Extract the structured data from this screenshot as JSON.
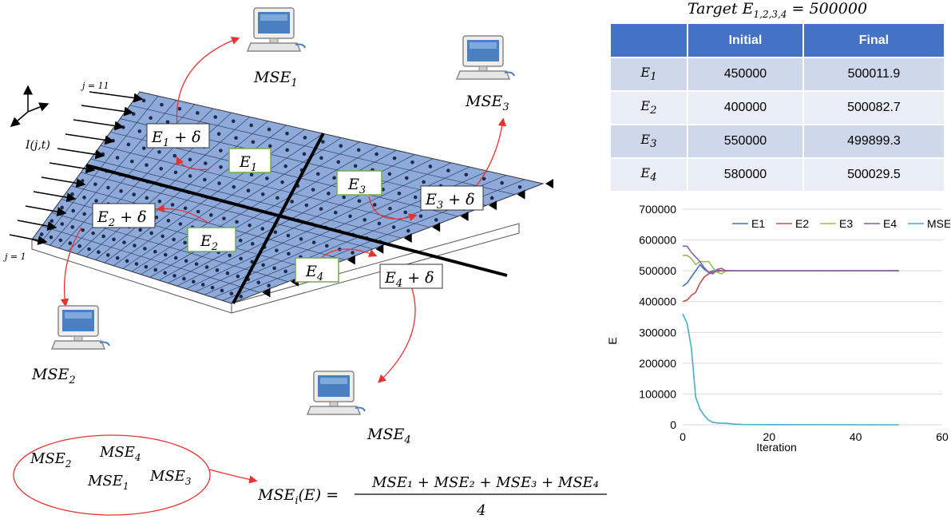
{
  "diagram": {
    "labels": {
      "j_top": "j = 11",
      "j_bottom": "j = 1",
      "load": "I(j,t)",
      "e1_delta": "E",
      "e1_delta_sub": "1",
      "e1_delta_tail": " + δ",
      "e2_delta": "E",
      "e2_delta_sub": "2",
      "e2_delta_tail": " + δ",
      "e3_delta": "E",
      "e3_delta_sub": "3",
      "e3_delta_tail": " + δ",
      "e4_delta": "E",
      "e4_delta_sub": "4",
      "e4_delta_tail": " + δ",
      "e1": "E",
      "e1_sub": "1",
      "e2": "E",
      "e2_sub": "2",
      "e3": "E",
      "e3_sub": "3",
      "e4": "E",
      "e4_sub": "4"
    },
    "computers": [
      {
        "label": "MSE",
        "sub": "1"
      },
      {
        "label": "MSE",
        "sub": "2"
      },
      {
        "label": "MSE",
        "sub": "3"
      },
      {
        "label": "MSE",
        "sub": "4"
      }
    ],
    "ellipse_items": [
      {
        "label": "MSE",
        "sub": "2"
      },
      {
        "label": "MSE",
        "sub": "4"
      },
      {
        "label": "MSE",
        "sub": "1"
      },
      {
        "label": "MSE",
        "sub": "3"
      }
    ],
    "formula": {
      "lhs": "MSE",
      "lhs_sub": "i",
      "lhs_tail": "(E) =",
      "numerator": "MSE₁ + MSE₂ + MSE₃ + MSE₄",
      "denominator": "4"
    },
    "colors": {
      "plate": "#8eaadb",
      "arrow_red": "#e8322f",
      "box_green": "#70ad47"
    }
  },
  "table": {
    "title_prefix": "Target E",
    "title_sub": "1,2,3,4",
    "title_suffix": " = 500000",
    "headers": [
      "",
      "Initial",
      "Final"
    ],
    "rows": [
      {
        "label": "E",
        "sub": "1",
        "initial": "450000",
        "final": "500011.9"
      },
      {
        "label": "E",
        "sub": "2",
        "initial": "400000",
        "final": "500082.7"
      },
      {
        "label": "E",
        "sub": "3",
        "initial": "550000",
        "final": "499899.3"
      },
      {
        "label": "E",
        "sub": "4",
        "initial": "580000",
        "final": "500029.5"
      }
    ]
  },
  "chart_data": {
    "type": "line",
    "title": "",
    "xlabel": "Iteration",
    "ylabel": "E",
    "xlim": [
      0,
      60
    ],
    "ylim": [
      0,
      700000
    ],
    "xticks": [
      "0",
      "20",
      "40",
      "60"
    ],
    "yticks": [
      "0",
      "100000",
      "200000",
      "300000",
      "400000",
      "500000",
      "600000",
      "700000"
    ],
    "grid": "horizontal",
    "legend": "top-right",
    "series": [
      {
        "name": "E1",
        "color": "#4472c4",
        "x": [
          0,
          1,
          2,
          3,
          4,
          5,
          6,
          7,
          8,
          9,
          10,
          12,
          14,
          50
        ],
        "y": [
          450000,
          460000,
          480000,
          500000,
          520000,
          505000,
          495000,
          500000,
          502000,
          500000,
          500500,
          500000,
          500000,
          500011.9
        ]
      },
      {
        "name": "E2",
        "color": "#c0504d",
        "x": [
          0,
          1,
          2,
          3,
          4,
          5,
          6,
          7,
          8,
          9,
          10,
          12,
          14,
          50
        ],
        "y": [
          400000,
          405000,
          420000,
          430000,
          460000,
          480000,
          490000,
          495000,
          498000,
          500000,
          501000,
          500000,
          500000,
          500082.7
        ]
      },
      {
        "name": "E3",
        "color": "#9bbb59",
        "x": [
          0,
          1,
          2,
          3,
          4,
          5,
          6,
          7,
          8,
          9,
          10,
          12,
          14,
          50
        ],
        "y": [
          550000,
          550000,
          540000,
          520000,
          530000,
          530000,
          530000,
          510000,
          495000,
          490000,
          500000,
          500000,
          500000,
          499899.3
        ]
      },
      {
        "name": "E4",
        "color": "#8064a2",
        "x": [
          0,
          1,
          2,
          3,
          4,
          5,
          6,
          7,
          8,
          9,
          10,
          12,
          14,
          50
        ],
        "y": [
          580000,
          580000,
          560000,
          545000,
          530000,
          510000,
          495000,
          490000,
          505000,
          508000,
          500000,
          500000,
          500000,
          500029.5
        ]
      },
      {
        "name": "MSE",
        "color": "#4bacc6",
        "x": [
          0,
          1,
          2,
          3,
          4,
          5,
          6,
          7,
          8,
          9,
          10,
          12,
          14,
          20,
          50
        ],
        "y": [
          360000,
          330000,
          250000,
          90000,
          50000,
          30000,
          15000,
          8000,
          6000,
          5000,
          5000,
          2000,
          1000,
          500,
          0
        ]
      }
    ]
  }
}
